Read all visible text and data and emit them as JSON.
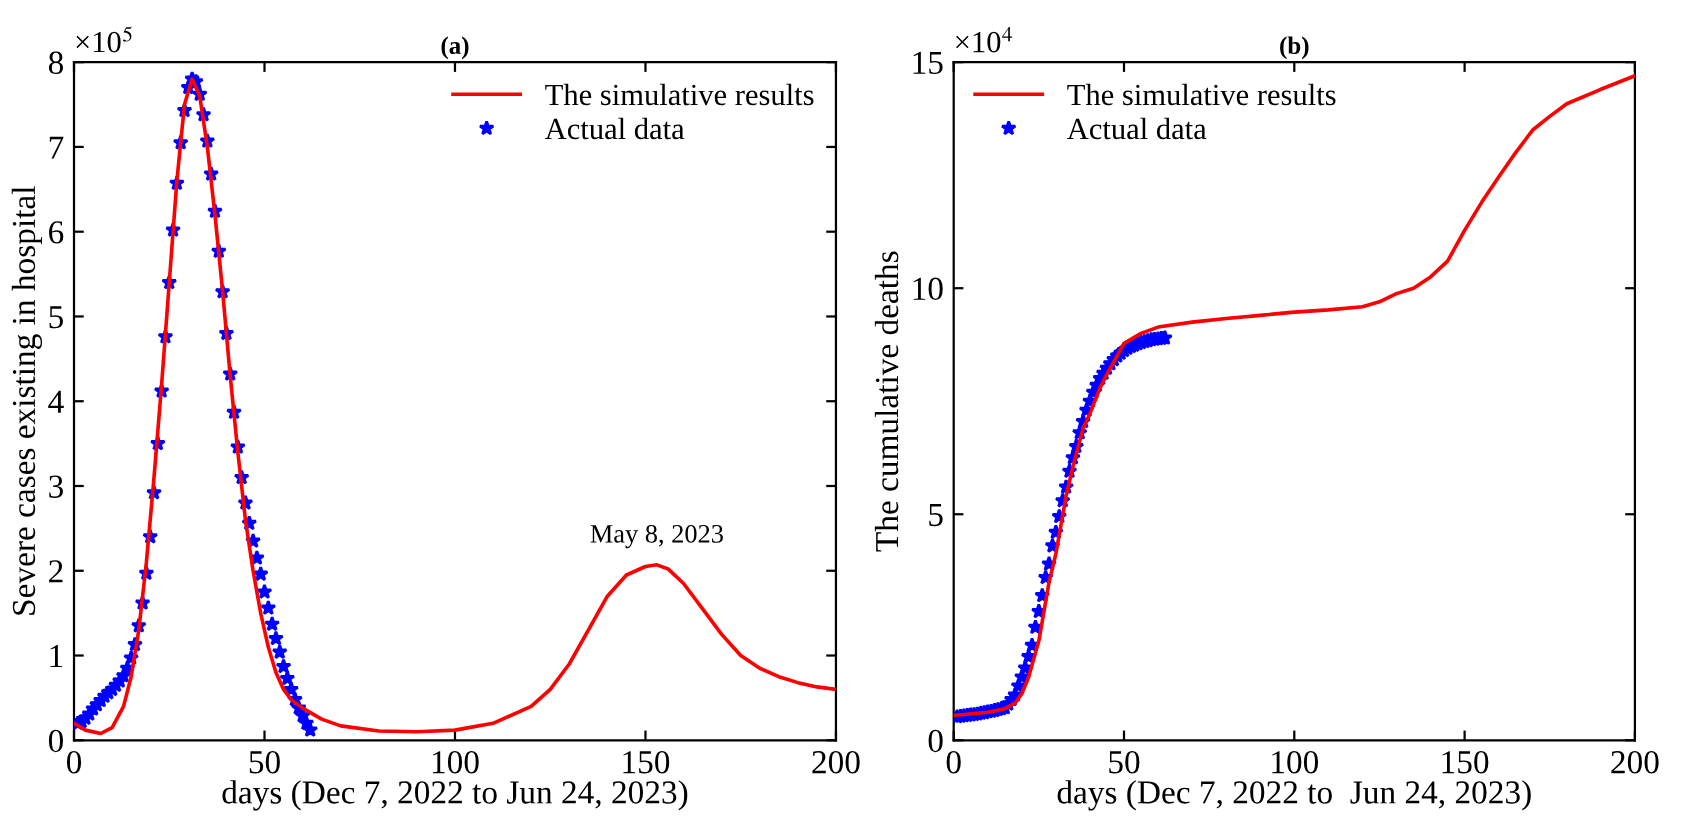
{
  "chart_data": [
    {
      "type": "line",
      "title": "(a)",
      "xlabel": "days (Dec 7, 2022 to Jun 24, 2023)",
      "ylabel": "Severe cases existing in hospital",
      "xlim": [
        0,
        200
      ],
      "xticks": [
        0,
        50,
        100,
        150,
        200
      ],
      "ylim": [
        0,
        8
      ],
      "yticks": [
        0,
        1,
        2,
        3,
        4,
        5,
        6,
        7,
        8
      ],
      "grid": false,
      "legend": "top right",
      "annotations": [
        "×10$^{5}$",
        {
          "text": "May 8, 2023",
          "x": 153,
          "y": 2.07
        }
      ],
      "series": [
        {
          "name": "The simulative results",
          "type": "line",
          "color": "#ff0000",
          "marker": "none",
          "line_style": "solid",
          "x": [
            0,
            3,
            7,
            10,
            13,
            15,
            17,
            19,
            21,
            23,
            25,
            27,
            29,
            31,
            33,
            35,
            37,
            39,
            41,
            43,
            45,
            47,
            49,
            51,
            53,
            55,
            57,
            60,
            65,
            70,
            80,
            90,
            100,
            110,
            120,
            125,
            130,
            135,
            140,
            145,
            150,
            153,
            156,
            160,
            165,
            170,
            175,
            180,
            185,
            190,
            195,
            200
          ],
          "values": [
            0.2,
            0.12,
            0.08,
            0.15,
            0.4,
            0.75,
            1.3,
            2.1,
            3.1,
            4.2,
            5.4,
            6.6,
            7.5,
            7.8,
            7.6,
            7.0,
            6.2,
            5.3,
            4.3,
            3.4,
            2.6,
            2.0,
            1.5,
            1.1,
            0.8,
            0.6,
            0.48,
            0.38,
            0.25,
            0.17,
            0.11,
            0.1,
            0.12,
            0.2,
            0.4,
            0.6,
            0.9,
            1.3,
            1.7,
            1.95,
            2.05,
            2.07,
            2.02,
            1.85,
            1.55,
            1.25,
            1.0,
            0.85,
            0.75,
            0.68,
            0.63,
            0.6
          ]
        },
        {
          "name": "Actual data",
          "type": "scatter",
          "color": "#0000ff",
          "marker": "star",
          "x": [
            1,
            2,
            3,
            4,
            5,
            6,
            7,
            8,
            9,
            10,
            11,
            12,
            13,
            14,
            15,
            16,
            17,
            18,
            19,
            20,
            21,
            22,
            23,
            24,
            25,
            26,
            27,
            28,
            29,
            30,
            31,
            32,
            33,
            34,
            35,
            36,
            37,
            38,
            39,
            40,
            41,
            42,
            43,
            44,
            45,
            46,
            47,
            48,
            49,
            50,
            51,
            52,
            53,
            54,
            55,
            56,
            57,
            58,
            59,
            60,
            61,
            62
          ],
          "values": [
            0.2,
            0.22,
            0.26,
            0.31,
            0.37,
            0.42,
            0.47,
            0.52,
            0.56,
            0.6,
            0.65,
            0.7,
            0.76,
            0.85,
            0.97,
            1.13,
            1.35,
            1.62,
            1.97,
            2.4,
            2.92,
            3.5,
            4.12,
            4.76,
            5.4,
            6.02,
            6.57,
            7.05,
            7.43,
            7.7,
            7.8,
            7.77,
            7.62,
            7.38,
            7.07,
            6.68,
            6.24,
            5.77,
            5.29,
            4.8,
            4.32,
            3.87,
            3.46,
            3.1,
            2.8,
            2.56,
            2.35,
            2.15,
            1.96,
            1.75,
            1.56,
            1.37,
            1.2,
            1.04,
            0.87,
            0.73,
            0.6,
            0.48,
            0.38,
            0.29,
            0.2,
            0.12
          ]
        }
      ]
    },
    {
      "type": "line",
      "title": "(b)",
      "xlabel": "days (Dec 7, 2022 to  Jun 24, 2023)",
      "ylabel": "The cumulative deaths",
      "xlim": [
        0,
        200
      ],
      "xticks": [
        0,
        50,
        100,
        150,
        200
      ],
      "ylim": [
        0,
        15
      ],
      "yticks": [
        0,
        5,
        10,
        15
      ],
      "grid": false,
      "legend": "top left",
      "annotations": [
        "×10$^{4}$"
      ],
      "series": [
        {
          "name": "The simulative results",
          "type": "line",
          "color": "#ff0000",
          "marker": "none",
          "line_style": "solid",
          "x": [
            0,
            10,
            15,
            18,
            20,
            22,
            25,
            28,
            30,
            33,
            35,
            38,
            40,
            43,
            45,
            50,
            55,
            60,
            70,
            80,
            90,
            100,
            110,
            120,
            125,
            130,
            135,
            140,
            145,
            150,
            155,
            160,
            165,
            170,
            175,
            180,
            190,
            200
          ],
          "values": [
            0.55,
            0.62,
            0.7,
            0.82,
            1.03,
            1.4,
            2.2,
            3.5,
            4.13,
            5.4,
            6.05,
            6.9,
            7.23,
            7.8,
            8.1,
            8.78,
            9.0,
            9.14,
            9.25,
            9.33,
            9.4,
            9.47,
            9.52,
            9.59,
            9.7,
            9.88,
            10.0,
            10.25,
            10.6,
            11.28,
            11.9,
            12.46,
            13.0,
            13.5,
            13.8,
            14.08,
            14.4,
            14.7
          ]
        },
        {
          "name": "Actual data",
          "type": "scatter",
          "color": "#0000ff",
          "marker": "star",
          "x": [
            1,
            2,
            3,
            4,
            5,
            6,
            7,
            8,
            9,
            10,
            11,
            12,
            13,
            14,
            15,
            16,
            17,
            18,
            19,
            20,
            21,
            22,
            23,
            24,
            25,
            26,
            27,
            28,
            29,
            30,
            31,
            32,
            33,
            34,
            35,
            36,
            37,
            38,
            39,
            40,
            41,
            42,
            43,
            44,
            45,
            46,
            47,
            48,
            49,
            50,
            51,
            52,
            53,
            54,
            55,
            56,
            57,
            58,
            59,
            60,
            61,
            62
          ],
          "values": [
            0.52,
            0.53,
            0.54,
            0.55,
            0.56,
            0.57,
            0.58,
            0.6,
            0.61,
            0.63,
            0.64,
            0.66,
            0.68,
            0.7,
            0.72,
            0.8,
            0.9,
            1.0,
            1.2,
            1.4,
            1.6,
            1.85,
            2.1,
            2.5,
            2.85,
            3.2,
            3.6,
            3.9,
            4.3,
            4.6,
            4.95,
            5.3,
            5.6,
            5.95,
            6.25,
            6.5,
            6.8,
            7.05,
            7.3,
            7.5,
            7.7,
            7.85,
            8.0,
            8.12,
            8.23,
            8.33,
            8.42,
            8.5,
            8.56,
            8.62,
            8.67,
            8.71,
            8.74,
            8.77,
            8.8,
            8.82,
            8.84,
            8.86,
            8.87,
            8.88,
            8.89,
            8.9
          ]
        }
      ]
    }
  ]
}
